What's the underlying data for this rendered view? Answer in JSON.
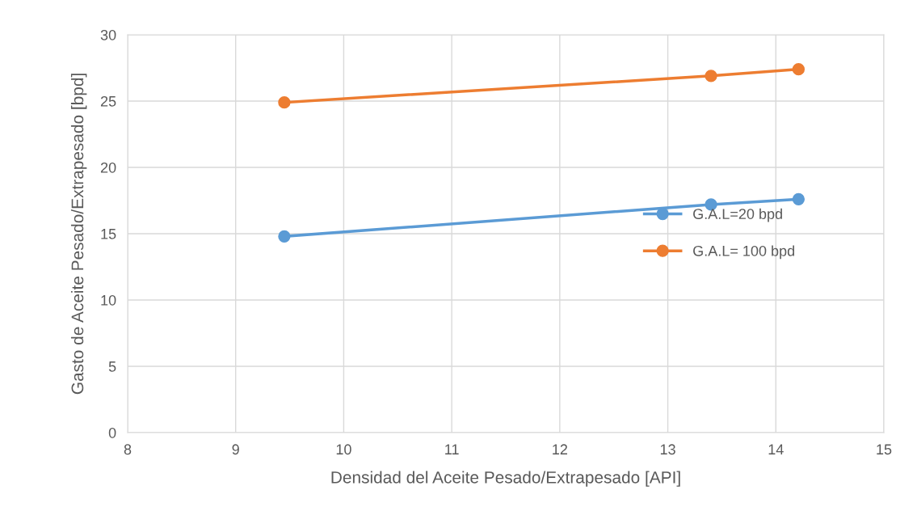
{
  "chart_data": {
    "type": "line",
    "xlabel": "Densidad del Aceite Pesado/Extrapesado [API]",
    "ylabel": "Gasto de Aceite Pesado/Extrapesado [bpd]",
    "x": [
      9.45,
      13.4,
      14.21
    ],
    "series": [
      {
        "name": "G.A.L=20 bpd",
        "color": "#5b9bd5",
        "values": [
          14.8,
          17.2,
          17.6
        ]
      },
      {
        "name": "G.A.L= 100 bpd",
        "color": "#ed7d31",
        "values": [
          24.9,
          26.9,
          27.4
        ]
      }
    ],
    "xlim": [
      8,
      15
    ],
    "xticks": [
      8,
      9,
      10,
      11,
      12,
      13,
      14,
      15
    ],
    "ylim": [
      0,
      30
    ],
    "yticks": [
      0,
      5,
      10,
      15,
      20,
      25,
      30
    ],
    "grid": true,
    "legend": "center right",
    "marker": "circle",
    "line_style": "solid"
  }
}
